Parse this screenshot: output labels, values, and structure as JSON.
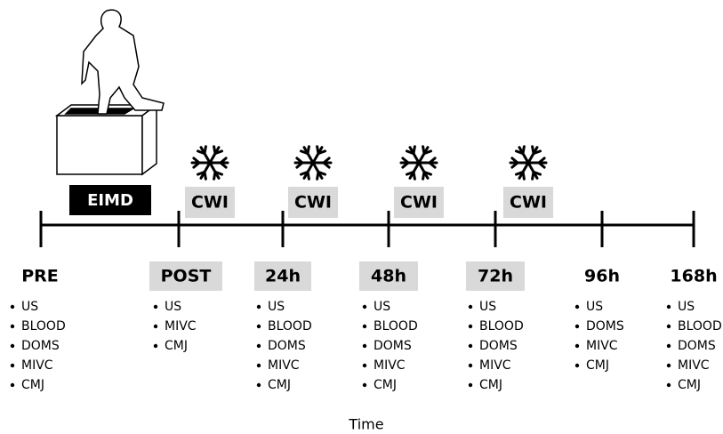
{
  "timeline": {
    "points": [
      {
        "label": "PRE",
        "measures": [
          "US",
          "BLOOD",
          "DOMS",
          "MIVC",
          "CMJ"
        ]
      },
      {
        "label": "POST",
        "measures": [
          "US",
          "MIVC",
          "CMJ"
        ]
      },
      {
        "label": "24h",
        "measures": [
          "US",
          "BLOOD",
          "DOMS",
          "MIVC",
          "CMJ"
        ]
      },
      {
        "label": "48h",
        "measures": [
          "US",
          "BLOOD",
          "DOMS",
          "MIVC",
          "CMJ"
        ]
      },
      {
        "label": "72h",
        "measures": [
          "US",
          "BLOOD",
          "DOMS",
          "MIVC",
          "CMJ"
        ]
      },
      {
        "label": "96h",
        "measures": [
          "US",
          "DOMS",
          "MIVC",
          "CMJ"
        ]
      },
      {
        "label": "168h",
        "measures": [
          "US",
          "BLOOD",
          "DOMS",
          "MIVC",
          "CMJ"
        ]
      }
    ]
  },
  "eimd": "EIMD",
  "cwi": [
    "CWI",
    "CWI",
    "CWI",
    "CWI"
  ],
  "axis_label": "Time"
}
